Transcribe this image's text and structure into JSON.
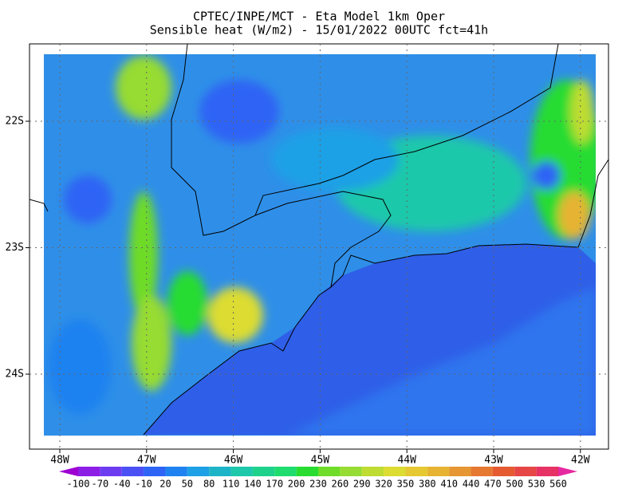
{
  "title": [
    "CPTEC/INPE/MCT -  Eta Model 1km Oper",
    "Sensible heat (W/m2) - 15/01/2022 00UTC fct=41h"
  ],
  "map": {
    "lon_ticks": [
      {
        "value": -48,
        "label": "48W"
      },
      {
        "value": -47,
        "label": "47W"
      },
      {
        "value": -46,
        "label": "46W"
      },
      {
        "value": -45,
        "label": "45W"
      },
      {
        "value": -44,
        "label": "44W"
      },
      {
        "value": -43,
        "label": "43W"
      },
      {
        "value": -42,
        "label": "42W"
      }
    ],
    "lat_ticks": [
      {
        "value": -22,
        "label": "22S"
      },
      {
        "value": -23,
        "label": "23S"
      },
      {
        "value": -24,
        "label": "24S"
      }
    ]
  },
  "colorbar": {
    "levels": [
      -100,
      -70,
      -40,
      -10,
      20,
      50,
      80,
      110,
      140,
      170,
      200,
      230,
      260,
      290,
      320,
      350,
      380,
      410,
      440,
      470,
      500,
      530,
      560
    ],
    "colors": [
      "#9e00d2",
      "#8c1ee6",
      "#6e3cf0",
      "#4b50f5",
      "#2d64f5",
      "#1e82f0",
      "#1ea0e6",
      "#1eb4c8",
      "#1ec8aa",
      "#1ed28c",
      "#1edc6e",
      "#28dc32",
      "#6edc28",
      "#96dc32",
      "#bedc32",
      "#dcdc32",
      "#e6c832",
      "#e6b432",
      "#e69632",
      "#e67832",
      "#e65a32",
      "#e64646",
      "#e63264",
      "#e628a0"
    ]
  }
}
